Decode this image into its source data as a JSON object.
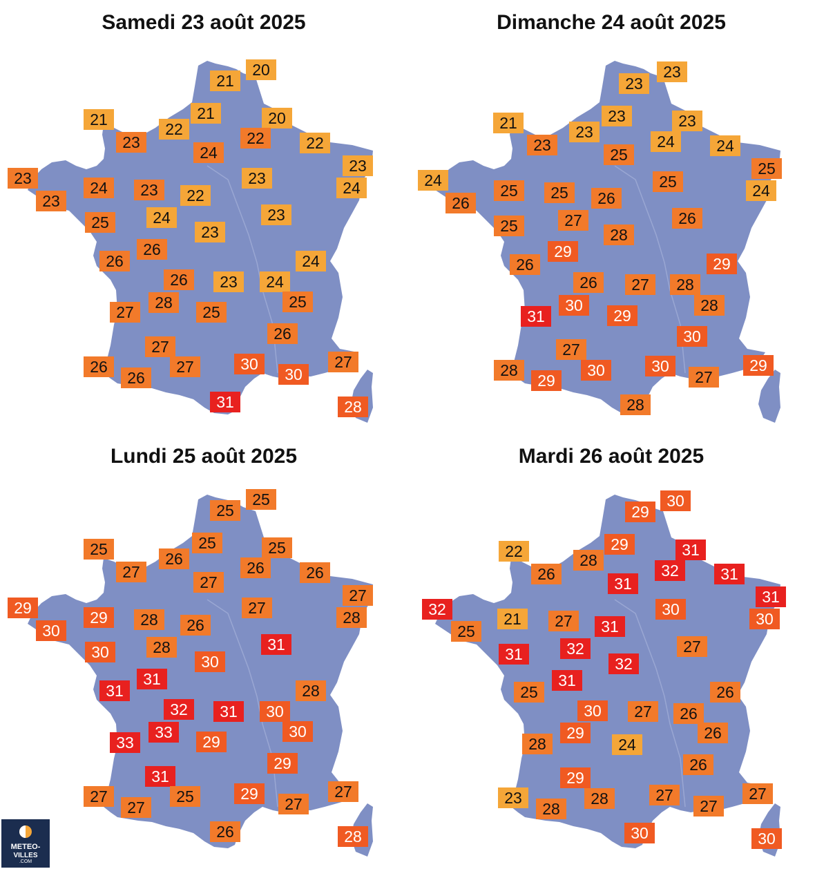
{
  "colors": {
    "map": "#7f8fc4",
    "temp_22_and_below": "#f5a638",
    "temp_23_to_28": "#f27a2a",
    "temp_29_to_30": "#f05a22",
    "temp_31_and_above": "#e8211f"
  },
  "logo": {
    "line1": "METEO-",
    "line2": "VILLES",
    "line3": ".COM"
  },
  "panels": [
    {
      "title": "Samedi 23 août 2025",
      "temps": [
        {
          "v": "20",
          "k": "yel"
        },
        {
          "v": "21",
          "k": "yel"
        },
        {
          "v": "21",
          "k": "yel"
        },
        {
          "v": "21",
          "k": "yel"
        },
        {
          "v": "20",
          "k": "yel"
        },
        {
          "v": "22",
          "k": "yel"
        },
        {
          "v": "23",
          "k": "or"
        },
        {
          "v": "22",
          "k": "or"
        },
        {
          "v": "22",
          "k": "yel"
        },
        {
          "v": "24",
          "k": "or"
        },
        {
          "v": "23",
          "k": "yel"
        },
        {
          "v": "23",
          "k": "or"
        },
        {
          "v": "24",
          "k": "or"
        },
        {
          "v": "23",
          "k": "or"
        },
        {
          "v": "24",
          "k": "yel"
        },
        {
          "v": "23",
          "k": "yel"
        },
        {
          "v": "22",
          "k": "yel"
        },
        {
          "v": "23",
          "k": "or"
        },
        {
          "v": "25",
          "k": "or"
        },
        {
          "v": "24",
          "k": "yel"
        },
        {
          "v": "23",
          "k": "yel"
        },
        {
          "v": "23",
          "k": "yel"
        },
        {
          "v": "26",
          "k": "or"
        },
        {
          "v": "26",
          "k": "or"
        },
        {
          "v": "24",
          "k": "yel"
        },
        {
          "v": "26",
          "k": "or"
        },
        {
          "v": "23",
          "k": "yel"
        },
        {
          "v": "24",
          "k": "yel"
        },
        {
          "v": "28",
          "k": "or"
        },
        {
          "v": "25",
          "k": "or"
        },
        {
          "v": "27",
          "k": "or"
        },
        {
          "v": "25",
          "k": "or"
        },
        {
          "v": "26",
          "k": "or"
        },
        {
          "v": "27",
          "k": "or"
        },
        {
          "v": "26",
          "k": "or"
        },
        {
          "v": "27",
          "k": "or"
        },
        {
          "v": "30",
          "k": "dor"
        },
        {
          "v": "27",
          "k": "or"
        },
        {
          "v": "26",
          "k": "or"
        },
        {
          "v": "30",
          "k": "dor"
        },
        {
          "v": "31",
          "k": "red"
        },
        {
          "v": "28",
          "k": "dor"
        }
      ]
    },
    {
      "title": "Dimanche 24 août 2025",
      "temps": [
        {
          "v": "23",
          "k": "yel"
        },
        {
          "v": "23",
          "k": "yel"
        },
        {
          "v": "21",
          "k": "yel"
        },
        {
          "v": "23",
          "k": "yel"
        },
        {
          "v": "23",
          "k": "yel"
        },
        {
          "v": "23",
          "k": "yel"
        },
        {
          "v": "23",
          "k": "or"
        },
        {
          "v": "24",
          "k": "yel"
        },
        {
          "v": "25",
          "k": "or"
        },
        {
          "v": "24",
          "k": "yel"
        },
        {
          "v": "25",
          "k": "or"
        },
        {
          "v": "24",
          "k": "yel"
        },
        {
          "v": "25",
          "k": "or"
        },
        {
          "v": "25",
          "k": "or"
        },
        {
          "v": "24",
          "k": "yel"
        },
        {
          "v": "25",
          "k": "or"
        },
        {
          "v": "26",
          "k": "or"
        },
        {
          "v": "26",
          "k": "or"
        },
        {
          "v": "25",
          "k": "or"
        },
        {
          "v": "27",
          "k": "or"
        },
        {
          "v": "26",
          "k": "or"
        },
        {
          "v": "28",
          "k": "or"
        },
        {
          "v": "29",
          "k": "dor"
        },
        {
          "v": "26",
          "k": "or"
        },
        {
          "v": "29",
          "k": "dor"
        },
        {
          "v": "26",
          "k": "or"
        },
        {
          "v": "27",
          "k": "or"
        },
        {
          "v": "28",
          "k": "or"
        },
        {
          "v": "30",
          "k": "dor"
        },
        {
          "v": "31",
          "k": "red"
        },
        {
          "v": "28",
          "k": "or"
        },
        {
          "v": "29",
          "k": "dor"
        },
        {
          "v": "30",
          "k": "dor"
        },
        {
          "v": "27",
          "k": "or"
        },
        {
          "v": "28",
          "k": "or"
        },
        {
          "v": "30",
          "k": "dor"
        },
        {
          "v": "30",
          "k": "dor"
        },
        {
          "v": "29",
          "k": "dor"
        },
        {
          "v": "29",
          "k": "dor"
        },
        {
          "v": "27",
          "k": "or"
        },
        {
          "v": "28",
          "k": "or"
        }
      ]
    },
    {
      "title": "Lundi 25 août 2025",
      "temps": [
        {
          "v": "25",
          "k": "or"
        },
        {
          "v": "25",
          "k": "or"
        },
        {
          "v": "25",
          "k": "or"
        },
        {
          "v": "25",
          "k": "or"
        },
        {
          "v": "25",
          "k": "or"
        },
        {
          "v": "26",
          "k": "or"
        },
        {
          "v": "27",
          "k": "or"
        },
        {
          "v": "26",
          "k": "or"
        },
        {
          "v": "27",
          "k": "or"
        },
        {
          "v": "26",
          "k": "or"
        },
        {
          "v": "27",
          "k": "or"
        },
        {
          "v": "29",
          "k": "dor"
        },
        {
          "v": "29",
          "k": "dor"
        },
        {
          "v": "28",
          "k": "or"
        },
        {
          "v": "28",
          "k": "or"
        },
        {
          "v": "27",
          "k": "or"
        },
        {
          "v": "26",
          "k": "or"
        },
        {
          "v": "30",
          "k": "dor"
        },
        {
          "v": "30",
          "k": "dor"
        },
        {
          "v": "28",
          "k": "or"
        },
        {
          "v": "31",
          "k": "red"
        },
        {
          "v": "30",
          "k": "dor"
        },
        {
          "v": "31",
          "k": "red"
        },
        {
          "v": "31",
          "k": "red"
        },
        {
          "v": "28",
          "k": "or"
        },
        {
          "v": "32",
          "k": "red"
        },
        {
          "v": "31",
          "k": "red"
        },
        {
          "v": "30",
          "k": "dor"
        },
        {
          "v": "33",
          "k": "red"
        },
        {
          "v": "30",
          "k": "dor"
        },
        {
          "v": "33",
          "k": "red"
        },
        {
          "v": "29",
          "k": "dor"
        },
        {
          "v": "29",
          "k": "dor"
        },
        {
          "v": "31",
          "k": "red"
        },
        {
          "v": "27",
          "k": "or"
        },
        {
          "v": "25",
          "k": "or"
        },
        {
          "v": "29",
          "k": "dor"
        },
        {
          "v": "27",
          "k": "or"
        },
        {
          "v": "27",
          "k": "or"
        },
        {
          "v": "27",
          "k": "or"
        },
        {
          "v": "26",
          "k": "or"
        },
        {
          "v": "28",
          "k": "dor"
        }
      ]
    },
    {
      "title": "Mardi 26 août 2025",
      "temps": [
        {
          "v": "30",
          "k": "dor"
        },
        {
          "v": "29",
          "k": "dor"
        },
        {
          "v": "29",
          "k": "dor"
        },
        {
          "v": "31",
          "k": "red"
        },
        {
          "v": "22",
          "k": "yel"
        },
        {
          "v": "28",
          "k": "or"
        },
        {
          "v": "32",
          "k": "red"
        },
        {
          "v": "31",
          "k": "red"
        },
        {
          "v": "26",
          "k": "or"
        },
        {
          "v": "31",
          "k": "red"
        },
        {
          "v": "31",
          "k": "red"
        },
        {
          "v": "32",
          "k": "red"
        },
        {
          "v": "21",
          "k": "yel"
        },
        {
          "v": "27",
          "k": "or"
        },
        {
          "v": "30",
          "k": "dor"
        },
        {
          "v": "30",
          "k": "dor"
        },
        {
          "v": "31",
          "k": "red"
        },
        {
          "v": "25",
          "k": "or"
        },
        {
          "v": "31",
          "k": "red"
        },
        {
          "v": "32",
          "k": "red"
        },
        {
          "v": "27",
          "k": "or"
        },
        {
          "v": "32",
          "k": "red"
        },
        {
          "v": "31",
          "k": "red"
        },
        {
          "v": "25",
          "k": "or"
        },
        {
          "v": "26",
          "k": "or"
        },
        {
          "v": "30",
          "k": "dor"
        },
        {
          "v": "27",
          "k": "or"
        },
        {
          "v": "26",
          "k": "or"
        },
        {
          "v": "29",
          "k": "dor"
        },
        {
          "v": "26",
          "k": "or"
        },
        {
          "v": "28",
          "k": "or"
        },
        {
          "v": "24",
          "k": "yel"
        },
        {
          "v": "26",
          "k": "or"
        },
        {
          "v": "29",
          "k": "dor"
        },
        {
          "v": "23",
          "k": "yel"
        },
        {
          "v": "28",
          "k": "or"
        },
        {
          "v": "27",
          "k": "or"
        },
        {
          "v": "27",
          "k": "or"
        },
        {
          "v": "28",
          "k": "or"
        },
        {
          "v": "27",
          "k": "or"
        },
        {
          "v": "30",
          "k": "dor"
        },
        {
          "v": "30",
          "k": "dor"
        }
      ]
    }
  ]
}
